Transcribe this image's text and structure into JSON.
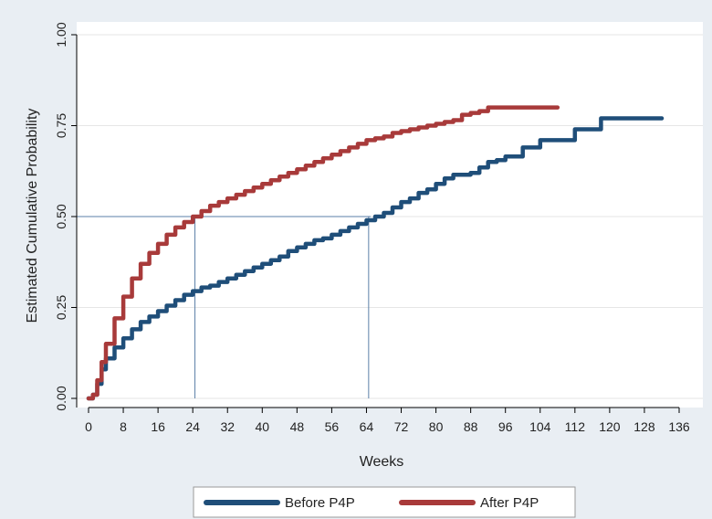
{
  "chart_data": {
    "type": "line",
    "title": "",
    "xlabel": "Weeks",
    "ylabel": "Estimated Cumulative Probability",
    "xlim": [
      0,
      136
    ],
    "ylim": [
      0,
      1
    ],
    "xticks": [
      0,
      8,
      16,
      24,
      32,
      40,
      48,
      56,
      64,
      72,
      80,
      88,
      96,
      104,
      112,
      120,
      128,
      136
    ],
    "xtick_labels": [
      "0",
      "8",
      "16",
      "24",
      "32",
      "40",
      "48",
      "56",
      "64",
      "72",
      "80",
      "88",
      "96",
      "104",
      "112",
      "120",
      "128",
      "136"
    ],
    "yticks": [
      0,
      0.25,
      0.5,
      0.75,
      1.0
    ],
    "ytick_labels": [
      "0.00",
      "0.25",
      "0.50",
      "0.75",
      "1.00"
    ],
    "grid": "horizontal",
    "legend": "bottom",
    "reference_lines": [
      {
        "type": "horizontal",
        "y": 0.5,
        "x_from": 0,
        "x_to": 65
      },
      {
        "type": "vertical",
        "x": 24.5,
        "y_from": 0,
        "y_to": 0.5
      },
      {
        "type": "vertical",
        "x": 64.5,
        "y_from": 0,
        "y_to": 0.5
      }
    ],
    "series": [
      {
        "name": "Before P4P",
        "color": "#1f4e79",
        "step": true,
        "points": [
          [
            0,
            0
          ],
          [
            1,
            0.01
          ],
          [
            2,
            0.04
          ],
          [
            3,
            0.08
          ],
          [
            4,
            0.11
          ],
          [
            6,
            0.14
          ],
          [
            8,
            0.165
          ],
          [
            10,
            0.19
          ],
          [
            12,
            0.21
          ],
          [
            14,
            0.225
          ],
          [
            16,
            0.24
          ],
          [
            18,
            0.255
          ],
          [
            20,
            0.27
          ],
          [
            22,
            0.285
          ],
          [
            24,
            0.295
          ],
          [
            26,
            0.305
          ],
          [
            28,
            0.31
          ],
          [
            30,
            0.32
          ],
          [
            32,
            0.33
          ],
          [
            34,
            0.34
          ],
          [
            36,
            0.35
          ],
          [
            38,
            0.36
          ],
          [
            40,
            0.37
          ],
          [
            42,
            0.38
          ],
          [
            44,
            0.39
          ],
          [
            46,
            0.405
          ],
          [
            48,
            0.415
          ],
          [
            50,
            0.425
          ],
          [
            52,
            0.435
          ],
          [
            54,
            0.44
          ],
          [
            56,
            0.45
          ],
          [
            58,
            0.46
          ],
          [
            60,
            0.47
          ],
          [
            62,
            0.48
          ],
          [
            64,
            0.49
          ],
          [
            66,
            0.5
          ],
          [
            68,
            0.51
          ],
          [
            70,
            0.525
          ],
          [
            72,
            0.54
          ],
          [
            74,
            0.55
          ],
          [
            76,
            0.565
          ],
          [
            78,
            0.575
          ],
          [
            80,
            0.59
          ],
          [
            82,
            0.605
          ],
          [
            84,
            0.615
          ],
          [
            88,
            0.62
          ],
          [
            90,
            0.635
          ],
          [
            92,
            0.65
          ],
          [
            94,
            0.655
          ],
          [
            96,
            0.665
          ],
          [
            100,
            0.69
          ],
          [
            104,
            0.71
          ],
          [
            112,
            0.74
          ],
          [
            118,
            0.77
          ],
          [
            128,
            0.77
          ],
          [
            132,
            0.77
          ]
        ]
      },
      {
        "name": "After P4P",
        "color": "#a83a3a",
        "step": true,
        "points": [
          [
            0,
            0
          ],
          [
            1,
            0.01
          ],
          [
            2,
            0.05
          ],
          [
            3,
            0.1
          ],
          [
            4,
            0.15
          ],
          [
            6,
            0.22
          ],
          [
            8,
            0.28
          ],
          [
            10,
            0.33
          ],
          [
            12,
            0.37
          ],
          [
            14,
            0.4
          ],
          [
            16,
            0.425
          ],
          [
            18,
            0.45
          ],
          [
            20,
            0.47
          ],
          [
            22,
            0.485
          ],
          [
            24,
            0.5
          ],
          [
            26,
            0.515
          ],
          [
            28,
            0.53
          ],
          [
            30,
            0.54
          ],
          [
            32,
            0.55
          ],
          [
            34,
            0.56
          ],
          [
            36,
            0.57
          ],
          [
            38,
            0.58
          ],
          [
            40,
            0.59
          ],
          [
            42,
            0.6
          ],
          [
            44,
            0.61
          ],
          [
            46,
            0.62
          ],
          [
            48,
            0.63
          ],
          [
            50,
            0.64
          ],
          [
            52,
            0.65
          ],
          [
            54,
            0.66
          ],
          [
            56,
            0.67
          ],
          [
            58,
            0.68
          ],
          [
            60,
            0.69
          ],
          [
            62,
            0.7
          ],
          [
            64,
            0.71
          ],
          [
            66,
            0.715
          ],
          [
            68,
            0.72
          ],
          [
            70,
            0.73
          ],
          [
            72,
            0.735
          ],
          [
            74,
            0.74
          ],
          [
            76,
            0.745
          ],
          [
            78,
            0.75
          ],
          [
            80,
            0.755
          ],
          [
            82,
            0.76
          ],
          [
            84,
            0.765
          ],
          [
            86,
            0.78
          ],
          [
            88,
            0.785
          ],
          [
            90,
            0.79
          ],
          [
            92,
            0.8
          ],
          [
            100,
            0.8
          ],
          [
            108,
            0.8
          ]
        ]
      }
    ]
  }
}
